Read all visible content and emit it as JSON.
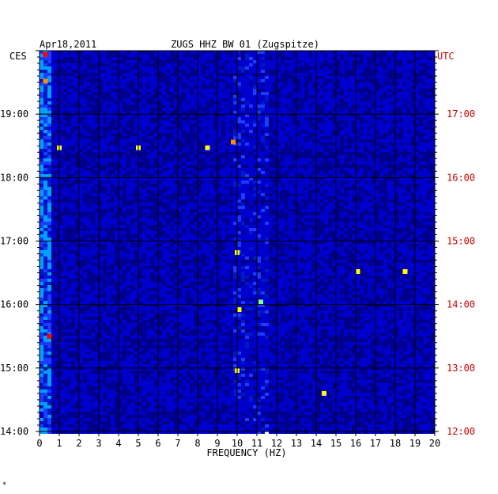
{
  "chart_data": {
    "type": "heatmap",
    "title": "ZUGS HHZ BW 01 (Zugspitze)",
    "date": "Apr18,2011",
    "xlabel": "FREQUENCY (HZ)",
    "left_axis_label": "CES",
    "right_axis_label": "UTC",
    "xlim": [
      0,
      20
    ],
    "x_ticks": [
      "0",
      "1",
      "2",
      "3",
      "4",
      "5",
      "6",
      "7",
      "8",
      "9",
      "10",
      "11",
      "12",
      "13",
      "14",
      "15",
      "16",
      "17",
      "18",
      "19",
      "20"
    ],
    "left_time_ticks": [
      "14:00",
      "15:00",
      "16:00",
      "17:00",
      "18:00",
      "19:00"
    ],
    "right_time_ticks": [
      "12:00",
      "13:00",
      "14:00",
      "15:00",
      "16:00",
      "17:00"
    ],
    "left_time_range": [
      "14:00",
      "20:00"
    ],
    "right_time_range": [
      "12:00",
      "18:00"
    ],
    "grid": true,
    "colormap": [
      "#00008b",
      "#0000cd",
      "#1a3cff",
      "#00a0ff",
      "#00e0e0",
      "#7fff7f",
      "#ffff00",
      "#ff8c00",
      "#ff0000"
    ],
    "right_label_color": "#cc0000",
    "background_color": "#0018c8",
    "hotspots": [
      {
        "f": 0.3,
        "t_from_top": 0.01,
        "level": 0.9
      },
      {
        "f": 0.3,
        "t_from_top": 0.08,
        "level": 0.8
      },
      {
        "f": 0.5,
        "t_from_top": 0.75,
        "level": 0.9
      },
      {
        "f": 1.0,
        "t_from_top": 0.255,
        "level": 0.7
      },
      {
        "f": 5.0,
        "t_from_top": 0.255,
        "level": 0.7
      },
      {
        "f": 8.5,
        "t_from_top": 0.255,
        "level": 0.75
      },
      {
        "f": 9.8,
        "t_from_top": 0.24,
        "level": 0.8
      },
      {
        "f": 10.0,
        "t_from_top": 0.53,
        "level": 0.7
      },
      {
        "f": 10.1,
        "t_from_top": 0.68,
        "level": 0.7
      },
      {
        "f": 10.0,
        "t_from_top": 0.84,
        "level": 0.75
      },
      {
        "f": 11.2,
        "t_from_top": 0.66,
        "level": 0.6
      },
      {
        "f": 14.4,
        "t_from_top": 0.9,
        "level": 0.7
      },
      {
        "f": 16.1,
        "t_from_top": 0.58,
        "level": 0.75
      },
      {
        "f": 18.5,
        "t_from_top": 0.58,
        "level": 0.7
      }
    ]
  },
  "footer_mark": "*"
}
